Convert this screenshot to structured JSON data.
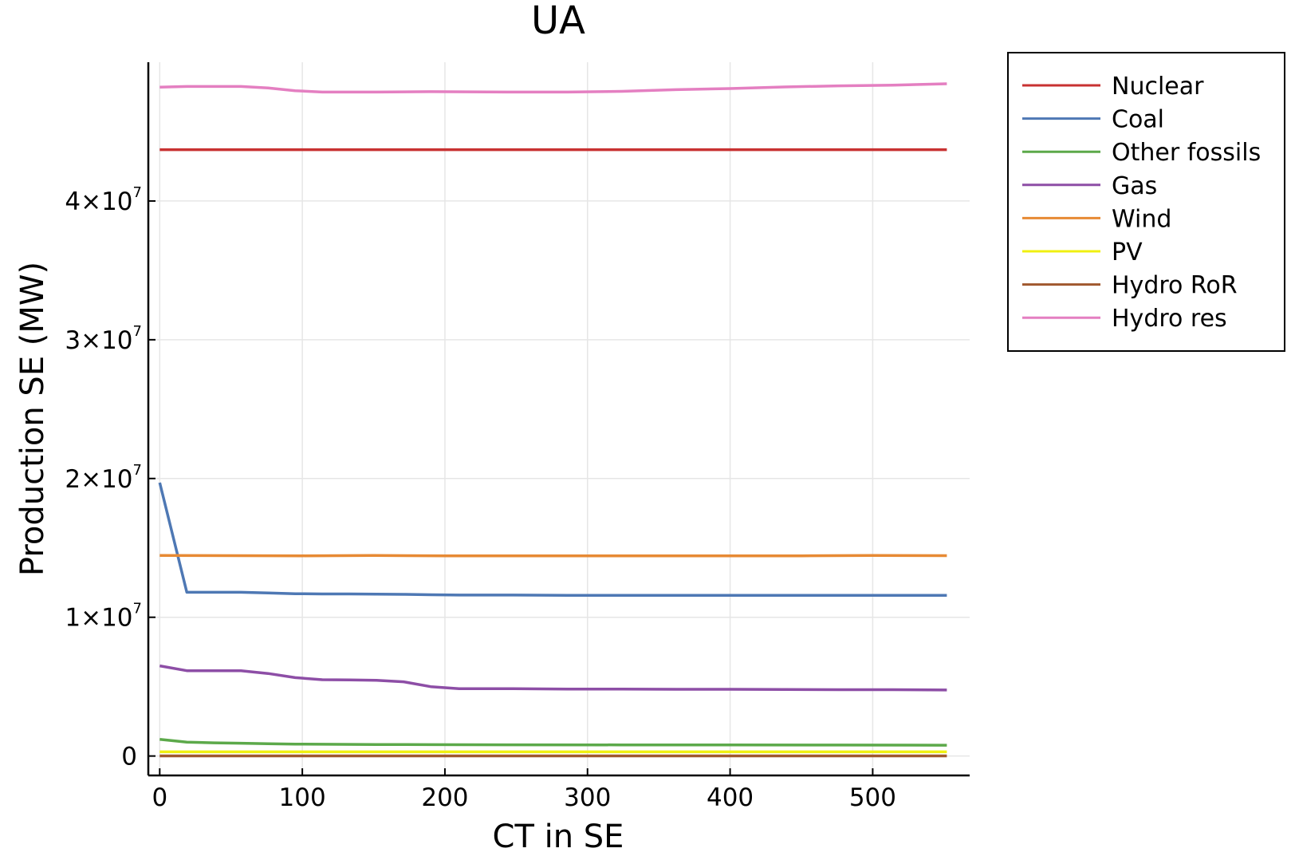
{
  "chart_data": {
    "type": "line",
    "title": "UA",
    "xlabel": "CT in SE",
    "ylabel": "Production SE (MW)",
    "xlim": [
      -8,
      568
    ],
    "ylim": [
      -1400000,
      50000000
    ],
    "x_ticks": [
      0,
      100,
      200,
      300,
      400,
      500
    ],
    "x_tick_labels": [
      "0",
      "100",
      "200",
      "300",
      "400",
      "500"
    ],
    "y_ticks": [
      0,
      10000000,
      20000000,
      30000000,
      40000000
    ],
    "y_tick_labels": [
      {
        "base": "0",
        "exp": ""
      },
      {
        "base": "1×10",
        "exp": "7"
      },
      {
        "base": "2×10",
        "exp": "7"
      },
      {
        "base": "3×10",
        "exp": "7"
      },
      {
        "base": "4×10",
        "exp": "7"
      }
    ],
    "grid": true,
    "legend_position": "outside-top-right",
    "series": [
      {
        "name": "Nuclear",
        "color": "#c83232",
        "x": [
          0,
          100,
          200,
          300,
          400,
          500,
          552
        ],
        "y": [
          43700000,
          43700000,
          43700000,
          43700000,
          43700000,
          43700000,
          43700000
        ]
      },
      {
        "name": "Coal",
        "color": "#4e78b4",
        "x": [
          0,
          19,
          38,
          57,
          76,
          95,
          114,
          133,
          152,
          171,
          190,
          210,
          248,
          286,
          324,
          362,
          400,
          438,
          476,
          514,
          552
        ],
        "y": [
          19700000,
          11800000,
          11800000,
          11800000,
          11750000,
          11700000,
          11680000,
          11680000,
          11670000,
          11650000,
          11620000,
          11600000,
          11600000,
          11580000,
          11580000,
          11580000,
          11580000,
          11580000,
          11580000,
          11580000,
          11580000
        ]
      },
      {
        "name": "Other fossils",
        "color": "#5ca94a",
        "x": [
          0,
          19,
          38,
          57,
          76,
          95,
          114,
          152,
          190,
          248,
          324,
          400,
          476,
          552
        ],
        "y": [
          1200000,
          1000000,
          950000,
          920000,
          880000,
          860000,
          850000,
          830000,
          820000,
          810000,
          800000,
          800000,
          790000,
          780000
        ]
      },
      {
        "name": "Gas",
        "color": "#8d4ea6",
        "x": [
          0,
          19,
          38,
          57,
          76,
          95,
          114,
          133,
          152,
          171,
          190,
          210,
          248,
          286,
          324,
          362,
          400,
          438,
          476,
          514,
          552
        ],
        "y": [
          6500000,
          6150000,
          6150000,
          6150000,
          5950000,
          5650000,
          5500000,
          5480000,
          5460000,
          5350000,
          5000000,
          4850000,
          4850000,
          4820000,
          4820000,
          4810000,
          4810000,
          4800000,
          4780000,
          4780000,
          4760000
        ]
      },
      {
        "name": "Wind",
        "color": "#e78a34",
        "x": [
          0,
          100,
          150,
          200,
          300,
          400,
          450,
          500,
          552
        ],
        "y": [
          14450000,
          14430000,
          14450000,
          14420000,
          14430000,
          14420000,
          14430000,
          14450000,
          14440000
        ]
      },
      {
        "name": "PV",
        "color": "#f0f010",
        "x": [
          0,
          552
        ],
        "y": [
          300000,
          300000
        ]
      },
      {
        "name": "Hydro RoR",
        "color": "#a0582e",
        "x": [
          0,
          552
        ],
        "y": [
          10000,
          10000
        ]
      },
      {
        "name": "Hydro res",
        "color": "#e47fc1",
        "x": [
          0,
          19,
          38,
          57,
          76,
          95,
          114,
          152,
          190,
          248,
          286,
          324,
          362,
          400,
          438,
          476,
          514,
          552
        ],
        "y": [
          48200000,
          48250000,
          48250000,
          48250000,
          48150000,
          47950000,
          47850000,
          47850000,
          47880000,
          47850000,
          47850000,
          47900000,
          48020000,
          48100000,
          48220000,
          48300000,
          48350000,
          48450000
        ]
      }
    ]
  }
}
